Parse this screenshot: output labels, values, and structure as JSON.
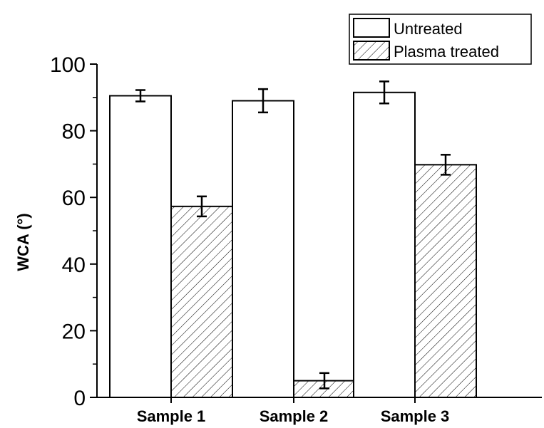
{
  "chart_data": {
    "type": "bar",
    "title": "",
    "xlabel": "",
    "ylabel": "WCA (°)",
    "ylim": [
      0,
      100
    ],
    "yticks": [
      "0",
      "20",
      "40",
      "60",
      "80",
      "100"
    ],
    "categories": [
      "Sample 1",
      "Sample 2",
      "Sample 3"
    ],
    "series": [
      {
        "name": "Untreated",
        "values": [
          90.5,
          89,
          91.5
        ],
        "errors": [
          1.7,
          3.5,
          3.3
        ],
        "fill": "white"
      },
      {
        "name": "Plasma treated",
        "values": [
          57.3,
          5,
          69.8
        ],
        "errors": [
          3.0,
          2.3,
          3.0
        ],
        "fill": "hatched"
      }
    ],
    "legend_position": "top-right",
    "grid": false
  }
}
